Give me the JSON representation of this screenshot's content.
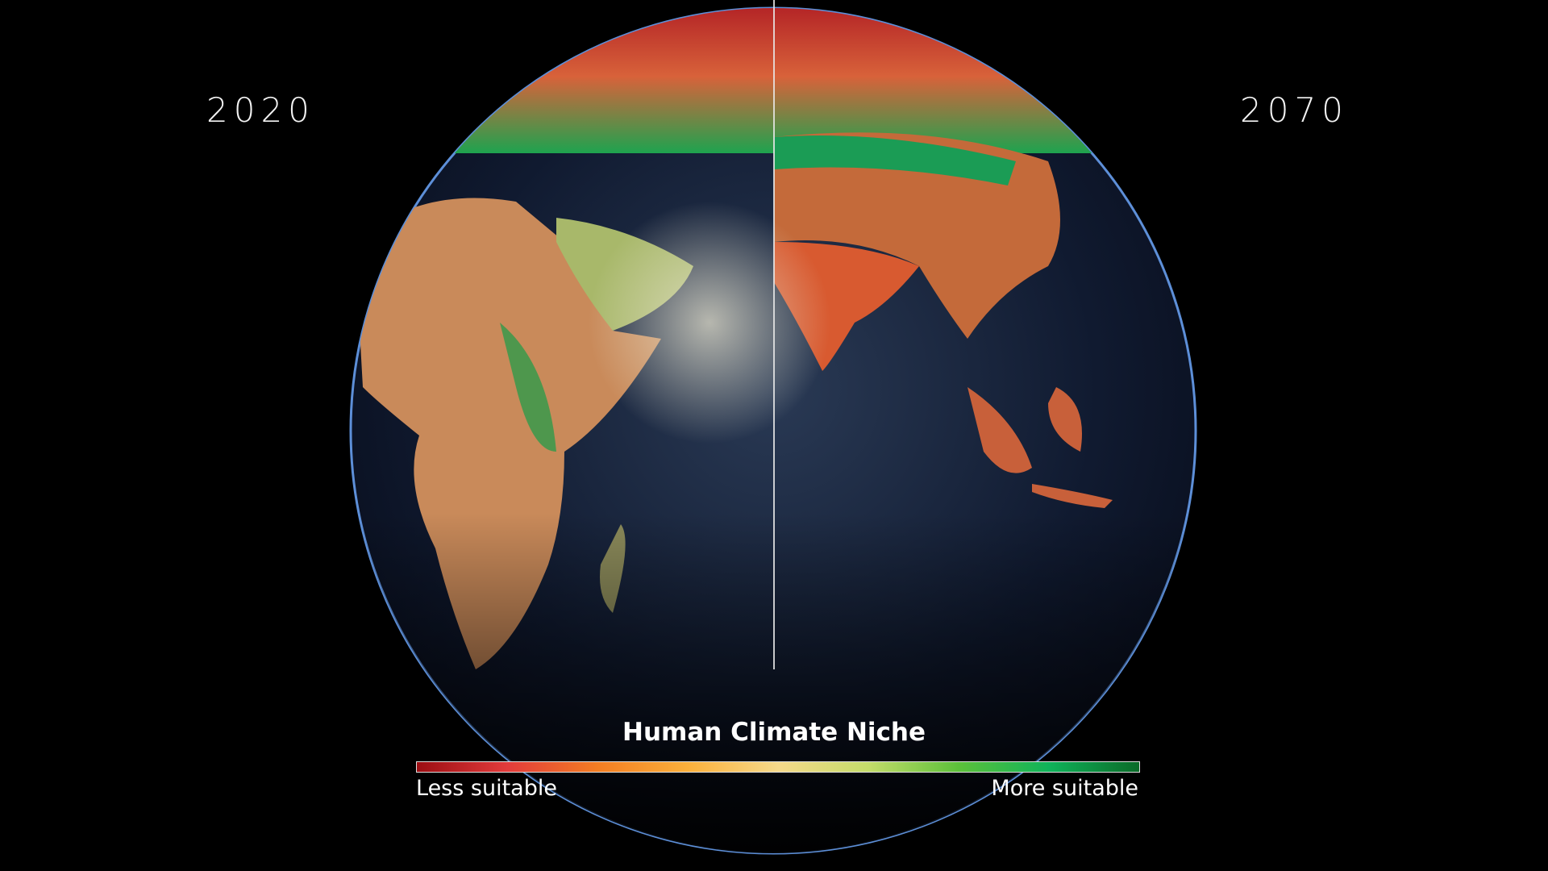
{
  "labels": {
    "left_year": "2020",
    "right_year": "2070"
  },
  "legend": {
    "title": "Human Climate Niche",
    "min_label": "Less suitable",
    "max_label": "More suitable",
    "colors": [
      "#9b0d12",
      "#e23b3b",
      "#f37d22",
      "#fbb03b",
      "#f6d98a",
      "#c4dc6a",
      "#5cc03a",
      "#0fb35a",
      "#0a6a28"
    ]
  }
}
